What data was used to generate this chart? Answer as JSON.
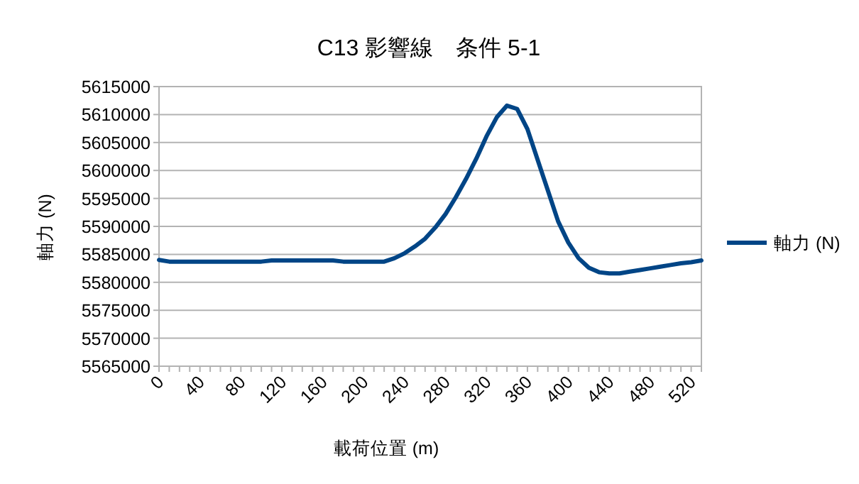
{
  "chart_data": {
    "type": "line",
    "title": "C13 影響線　条件 5-1",
    "xlabel": "載荷位置 (m)",
    "ylabel": "軸力 (N)",
    "x": [
      0,
      10,
      20,
      30,
      40,
      50,
      60,
      70,
      80,
      90,
      100,
      110,
      120,
      130,
      140,
      150,
      160,
      170,
      180,
      190,
      200,
      210,
      220,
      230,
      240,
      250,
      260,
      270,
      280,
      290,
      300,
      310,
      320,
      330,
      340,
      350,
      360,
      370,
      380,
      390,
      400,
      410,
      420,
      430,
      440,
      450,
      460,
      470,
      480,
      490,
      500,
      510,
      520,
      530
    ],
    "series": [
      {
        "name": "軸力 (N)",
        "color": "#004586",
        "values": [
          5584000,
          5583700,
          5583700,
          5583700,
          5583700,
          5583700,
          5583700,
          5583700,
          5583700,
          5583700,
          5583700,
          5583900,
          5583900,
          5583900,
          5583900,
          5583900,
          5583900,
          5583900,
          5583700,
          5583700,
          5583700,
          5583700,
          5583700,
          5584300,
          5585200,
          5586400,
          5587800,
          5589800,
          5592200,
          5595200,
          5598500,
          5602100,
          5606100,
          5609500,
          5611600,
          5611000,
          5607400,
          5601900,
          5596400,
          5590900,
          5587100,
          5584300,
          5582600,
          5581800,
          5581600,
          5581600,
          5581900,
          5582200,
          5582500,
          5582800,
          5583100,
          5583400,
          5583600,
          5583900
        ]
      }
    ],
    "xlim": [
      0,
      530
    ],
    "xticks": [
      0,
      {
        "value": 10,
        "label": null
      },
      {
        "value": 20,
        "label": null
      },
      {
        "value": 30,
        "label": null
      },
      40,
      {
        "value": 50,
        "label": null
      },
      {
        "value": 60,
        "label": null
      },
      {
        "value": 70,
        "label": null
      },
      80,
      {
        "value": 90,
        "label": null
      },
      {
        "value": 100,
        "label": null
      },
      {
        "value": 110,
        "label": null
      },
      120,
      {
        "value": 130,
        "label": null
      },
      {
        "value": 140,
        "label": null
      },
      {
        "value": 150,
        "label": null
      },
      160,
      {
        "value": 170,
        "label": null
      },
      {
        "value": 180,
        "label": null
      },
      {
        "value": 190,
        "label": null
      },
      200,
      {
        "value": 210,
        "label": null
      },
      {
        "value": 220,
        "label": null
      },
      {
        "value": 230,
        "label": null
      },
      240,
      {
        "value": 250,
        "label": null
      },
      {
        "value": 260,
        "label": null
      },
      {
        "value": 270,
        "label": null
      },
      280,
      {
        "value": 290,
        "label": null
      },
      {
        "value": 300,
        "label": null
      },
      {
        "value": 310,
        "label": null
      },
      320,
      {
        "value": 330,
        "label": null
      },
      {
        "value": 340,
        "label": null
      },
      {
        "value": 350,
        "label": null
      },
      360,
      {
        "value": 370,
        "label": null
      },
      {
        "value": 380,
        "label": null
      },
      {
        "value": 390,
        "label": null
      },
      400,
      {
        "value": 410,
        "label": null
      },
      {
        "value": 420,
        "label": null
      },
      {
        "value": 430,
        "label": null
      },
      440,
      {
        "value": 450,
        "label": null
      },
      {
        "value": 460,
        "label": null
      },
      {
        "value": 470,
        "label": null
      },
      480,
      {
        "value": 490,
        "label": null
      },
      {
        "value": 500,
        "label": null
      },
      {
        "value": 510,
        "label": null
      },
      520,
      {
        "value": 530,
        "label": null
      }
    ],
    "ylim": [
      5565000,
      5615000
    ],
    "yticks": [
      5565000,
      5570000,
      5575000,
      5580000,
      5585000,
      5590000,
      5595000,
      5600000,
      5605000,
      5610000,
      5615000
    ],
    "grid": "y",
    "legend": "right"
  }
}
